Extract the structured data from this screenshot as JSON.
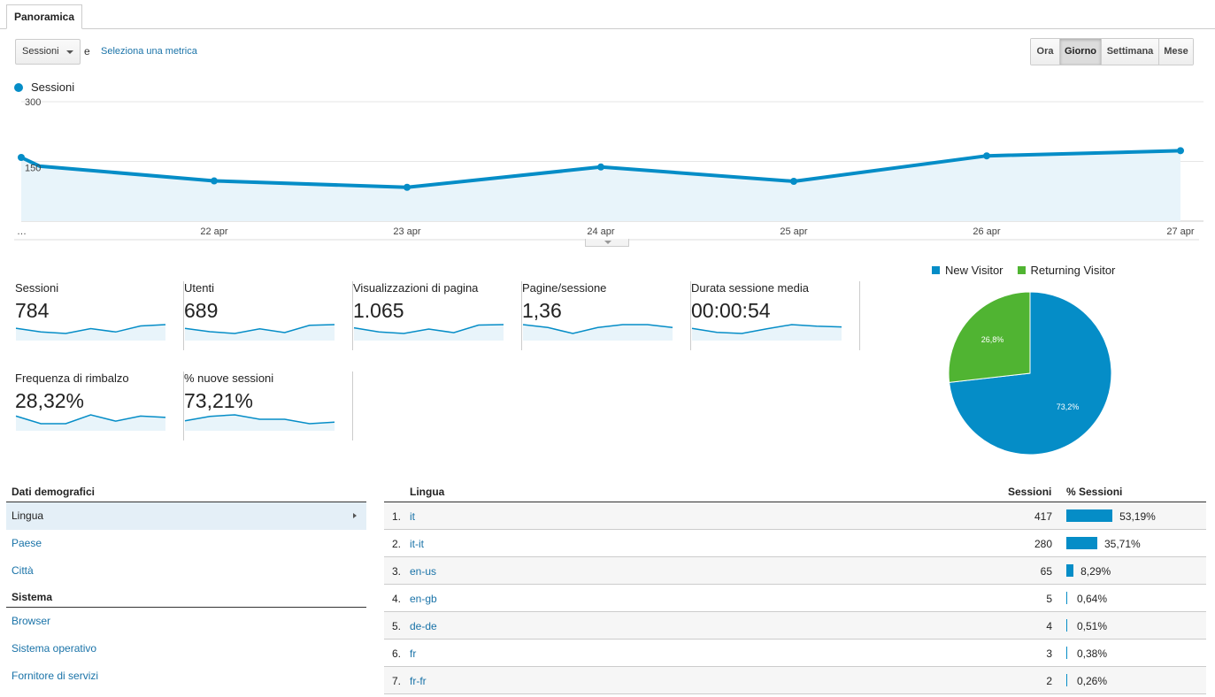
{
  "tab": {
    "label": "Panoramica"
  },
  "controls": {
    "metric": "Sessioni",
    "conjunction": "e",
    "add_metric": "Seleziona una metrica",
    "periods": [
      {
        "label": "Ora",
        "active": false
      },
      {
        "label": "Giorno",
        "active": true
      },
      {
        "label": "Settimana",
        "active": false
      },
      {
        "label": "Mese",
        "active": false
      }
    ]
  },
  "chart_legend": "Sessioni",
  "chart_data": [
    {
      "type": "area",
      "series": [
        {
          "name": "Sessioni",
          "values": [
            160,
            138,
            101,
            85,
            136,
            100,
            164,
            177
          ]
        }
      ],
      "categories": [
        "…",
        "",
        "22 apr",
        "23 apr",
        "24 apr",
        "25 apr",
        "26 apr",
        "27 apr"
      ],
      "x_labels": [
        "…",
        "22 apr",
        "23 apr",
        "24 apr",
        "25 apr",
        "26 apr",
        "27 apr"
      ],
      "y_ticks": [
        "300",
        "150"
      ],
      "ylim": [
        0,
        300
      ],
      "grid": true,
      "color": "#058dc7",
      "fill": "#e8f4fa"
    },
    {
      "type": "pie",
      "categories": [
        "New Visitor",
        "Returning Visitor"
      ],
      "values": [
        73.2,
        26.8
      ],
      "labels": [
        "73,2%",
        "26,8%"
      ],
      "colors": [
        "#058dc7",
        "#50b432"
      ],
      "legend": "top"
    }
  ],
  "kpis": [
    {
      "label": "Sessioni",
      "value": "784",
      "spark": [
        139,
        101,
        84,
        136,
        100,
        164,
        178
      ]
    },
    {
      "label": "Utenti",
      "value": "689",
      "spark": [
        122,
        92,
        76,
        118,
        84,
        150,
        156
      ]
    },
    {
      "label": "Visualizzazioni di pagina",
      "value": "1.065",
      "spark": [
        190,
        140,
        120,
        175,
        130,
        225,
        230
      ]
    },
    {
      "label": "Pagine/sessione",
      "value": "1,36",
      "spark": [
        1.38,
        1.37,
        1.35,
        1.37,
        1.38,
        1.38,
        1.37
      ]
    },
    {
      "label": "Durata sessione media",
      "value": "00:00:54",
      "spark": [
        48,
        38,
        35,
        47,
        58,
        54,
        52
      ]
    },
    {
      "label": "Frequenza di rimbalzo",
      "value": "28,32%",
      "spark": [
        34,
        28,
        28,
        35,
        30,
        34,
        33
      ]
    },
    {
      "label": "% nuove sessioni",
      "value": "73,21%",
      "spark": [
        74,
        77,
        78,
        75,
        75,
        72,
        73
      ]
    }
  ],
  "nav": {
    "demografici_title": "Dati demografici",
    "demografici": [
      {
        "label": "Lingua",
        "active": true
      },
      {
        "label": "Paese",
        "active": false
      },
      {
        "label": "Città",
        "active": false
      }
    ],
    "sistema_title": "Sistema",
    "sistema": [
      {
        "label": "Browser"
      },
      {
        "label": "Sistema operativo"
      },
      {
        "label": "Fornitore di servizi"
      }
    ]
  },
  "table": {
    "headers": {
      "dimension": "Lingua",
      "sessions": "Sessioni",
      "pct": "% Sessioni"
    },
    "rows": [
      {
        "idx": "1.",
        "lang": "it",
        "sessions": "417",
        "share": 53.19,
        "pct": "53,19%"
      },
      {
        "idx": "2.",
        "lang": "it-it",
        "sessions": "280",
        "share": 35.71,
        "pct": "35,71%"
      },
      {
        "idx": "3.",
        "lang": "en-us",
        "sessions": "65",
        "share": 8.29,
        "pct": "8,29%"
      },
      {
        "idx": "4.",
        "lang": "en-gb",
        "sessions": "5",
        "share": 0.64,
        "pct": "0,64%"
      },
      {
        "idx": "5.",
        "lang": "de-de",
        "sessions": "4",
        "share": 0.51,
        "pct": "0,51%"
      },
      {
        "idx": "6.",
        "lang": "fr",
        "sessions": "3",
        "share": 0.38,
        "pct": "0,38%"
      },
      {
        "idx": "7.",
        "lang": "fr-fr",
        "sessions": "2",
        "share": 0.26,
        "pct": "0,26%"
      }
    ]
  }
}
